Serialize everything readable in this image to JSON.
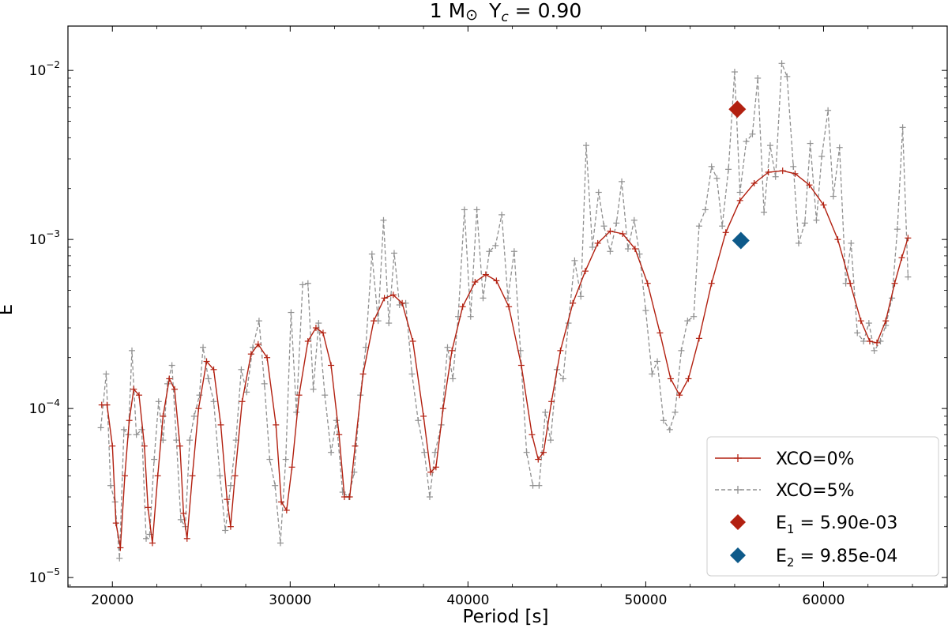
{
  "chart_data": {
    "type": "line",
    "title": "1 M⊙  Yᴄ = 0.90",
    "title_parts": {
      "mass": "1 M",
      "sun": "⊙",
      "y": "Y",
      "c": "c",
      "rest": " = 0.90"
    },
    "xlabel": "Period [s]",
    "ylabel": "E",
    "yscale": "log",
    "xlim": [
      17500,
      67000
    ],
    "ylim": [
      8.8e-06,
      0.0183
    ],
    "x_ticks": [
      20000,
      30000,
      40000,
      50000,
      60000
    ],
    "x_tick_labels": [
      "20000",
      "30000",
      "40000",
      "50000",
      "60000"
    ],
    "y_ticks": [
      1e-05,
      0.0001,
      0.001,
      0.01
    ],
    "y_tick_labels": [
      {
        "base": "10",
        "exp": "−5"
      },
      {
        "base": "10",
        "exp": "−4"
      },
      {
        "base": "10",
        "exp": "−3"
      },
      {
        "base": "10",
        "exp": "−2"
      }
    ],
    "series": [
      {
        "name": "XCO=0%",
        "color": "#b22010",
        "style": "solid",
        "marker": "+",
        "points": [
          [
            19400,
            0.000105
          ],
          [
            19700,
            0.000105
          ],
          [
            20000,
            6e-05
          ],
          [
            20200,
            2.1e-05
          ],
          [
            20450,
            1.5e-05
          ],
          [
            20700,
            4e-05
          ],
          [
            20950,
            8.5e-05
          ],
          [
            21200,
            0.00013
          ],
          [
            21500,
            0.00012
          ],
          [
            21800,
            6e-05
          ],
          [
            22000,
            2.6e-05
          ],
          [
            22250,
            1.6e-05
          ],
          [
            22550,
            4e-05
          ],
          [
            22850,
            9e-05
          ],
          [
            23200,
            0.00015
          ],
          [
            23500,
            0.00013
          ],
          [
            23800,
            6e-05
          ],
          [
            24000,
            2.4e-05
          ],
          [
            24200,
            1.7e-05
          ],
          [
            24500,
            4e-05
          ],
          [
            24850,
            0.0001
          ],
          [
            25300,
            0.00019
          ],
          [
            25700,
            0.00017
          ],
          [
            26100,
            8e-05
          ],
          [
            26450,
            2.9e-05
          ],
          [
            26650,
            2e-05
          ],
          [
            26900,
            4e-05
          ],
          [
            27300,
            0.00011
          ],
          [
            27800,
            0.00021
          ],
          [
            28200,
            0.00024
          ],
          [
            28700,
            0.0002
          ],
          [
            29200,
            8e-05
          ],
          [
            29500,
            2.8e-05
          ],
          [
            29800,
            2.5e-05
          ],
          [
            30100,
            4.5e-05
          ],
          [
            30500,
            0.00012
          ],
          [
            31000,
            0.00025
          ],
          [
            31450,
            0.0003
          ],
          [
            31850,
            0.00028
          ],
          [
            32300,
            0.00018
          ],
          [
            32750,
            7e-05
          ],
          [
            33050,
            3e-05
          ],
          [
            33350,
            3e-05
          ],
          [
            33650,
            6e-05
          ],
          [
            34100,
            0.00016
          ],
          [
            34700,
            0.00033
          ],
          [
            35300,
            0.00045
          ],
          [
            35800,
            0.00047
          ],
          [
            36300,
            0.00042
          ],
          [
            36900,
            0.00025
          ],
          [
            37500,
            9e-05
          ],
          [
            37900,
            4.2e-05
          ],
          [
            38200,
            4.5e-05
          ],
          [
            38600,
            0.0001
          ],
          [
            39100,
            0.00022
          ],
          [
            39700,
            0.0004
          ],
          [
            40400,
            0.00056
          ],
          [
            41000,
            0.00062
          ],
          [
            41600,
            0.00057
          ],
          [
            42300,
            0.0004
          ],
          [
            43000,
            0.00018
          ],
          [
            43600,
            7e-05
          ],
          [
            43950,
            5e-05
          ],
          [
            44250,
            5.5e-05
          ],
          [
            44700,
            0.00011
          ],
          [
            45200,
            0.00022
          ],
          [
            45900,
            0.00042
          ],
          [
            46600,
            0.00065
          ],
          [
            47300,
            0.00095
          ],
          [
            48000,
            0.00112
          ],
          [
            48700,
            0.00108
          ],
          [
            49400,
            0.00088
          ],
          [
            50100,
            0.00055
          ],
          [
            50800,
            0.00028
          ],
          [
            51400,
            0.00015
          ],
          [
            51900,
            0.00012
          ],
          [
            52400,
            0.00015
          ],
          [
            53000,
            0.00026
          ],
          [
            53700,
            0.00055
          ],
          [
            54500,
            0.0011
          ],
          [
            55300,
            0.0017
          ],
          [
            56100,
            0.00215
          ],
          [
            56900,
            0.0025
          ],
          [
            57700,
            0.00255
          ],
          [
            58400,
            0.00245
          ],
          [
            59200,
            0.0021
          ],
          [
            60000,
            0.0016
          ],
          [
            60800,
            0.001
          ],
          [
            61500,
            0.00055
          ],
          [
            62100,
            0.00033
          ],
          [
            62600,
            0.00025
          ],
          [
            63000,
            0.000245
          ],
          [
            63500,
            0.00033
          ],
          [
            64000,
            0.00055
          ],
          [
            64400,
            0.00078
          ],
          [
            64750,
            0.00102
          ]
        ]
      },
      {
        "name": "XCO=5%",
        "color": "#909090",
        "style": "dashed",
        "marker": "+",
        "points": [
          [
            19350,
            7.7e-05
          ],
          [
            19650,
            0.00016
          ],
          [
            19900,
            3.5e-05
          ],
          [
            20150,
            2.8e-05
          ],
          [
            20400,
            1.3e-05
          ],
          [
            20650,
            7.5e-05
          ],
          [
            20900,
            7e-05
          ],
          [
            21100,
            0.00022
          ],
          [
            21350,
            7e-05
          ],
          [
            21650,
            7.5e-05
          ],
          [
            21900,
            1.7e-05
          ],
          [
            22100,
            1.8e-05
          ],
          [
            22350,
            5e-05
          ],
          [
            22600,
            0.00011
          ],
          [
            22850,
            6.5e-05
          ],
          [
            23100,
            0.00014
          ],
          [
            23350,
            0.00018
          ],
          [
            23600,
            6.5e-05
          ],
          [
            23850,
            2.2e-05
          ],
          [
            24100,
            2e-05
          ],
          [
            24350,
            6.5e-05
          ],
          [
            24600,
            9e-05
          ],
          [
            24900,
            0.00012
          ],
          [
            25100,
            0.00023
          ],
          [
            25400,
            0.00015
          ],
          [
            25700,
            0.00011
          ],
          [
            26050,
            4e-05
          ],
          [
            26350,
            1.9e-05
          ],
          [
            26650,
            3.5e-05
          ],
          [
            26950,
            6.5e-05
          ],
          [
            27250,
            0.00017
          ],
          [
            27550,
            0.000125
          ],
          [
            27900,
            0.00023
          ],
          [
            28250,
            0.00033
          ],
          [
            28550,
            0.00014
          ],
          [
            28850,
            5e-05
          ],
          [
            29150,
            3.5e-05
          ],
          [
            29450,
            1.6e-05
          ],
          [
            29750,
            5e-05
          ],
          [
            30050,
            0.00037
          ],
          [
            30350,
            9.5e-05
          ],
          [
            30700,
            0.00054
          ],
          [
            31000,
            0.00055
          ],
          [
            31300,
            0.00013
          ],
          [
            31600,
            0.00032
          ],
          [
            31950,
            0.00012
          ],
          [
            32300,
            5.5e-05
          ],
          [
            32600,
            8.5e-05
          ],
          [
            32950,
            3.2e-05
          ],
          [
            33300,
            3e-05
          ],
          [
            33600,
            4.2e-05
          ],
          [
            33950,
            0.00012
          ],
          [
            34250,
            0.00023
          ],
          [
            34600,
            0.00082
          ],
          [
            34950,
            0.00033
          ],
          [
            35250,
            0.0013
          ],
          [
            35550,
            0.00032
          ],
          [
            35850,
            0.00083
          ],
          [
            36150,
            0.00041
          ],
          [
            36500,
            0.00042
          ],
          [
            36850,
            0.00016
          ],
          [
            37200,
            8.5e-05
          ],
          [
            37550,
            5.5e-05
          ],
          [
            37850,
            3e-05
          ],
          [
            38150,
            5.5e-05
          ],
          [
            38500,
            8e-05
          ],
          [
            38850,
            0.00023
          ],
          [
            39150,
            0.00015
          ],
          [
            39450,
            0.00035
          ],
          [
            39800,
            0.0015
          ],
          [
            40150,
            0.00035
          ],
          [
            40500,
            0.0015
          ],
          [
            40850,
            0.00045
          ],
          [
            41200,
            0.00085
          ],
          [
            41550,
            0.00092
          ],
          [
            41900,
            0.0014
          ],
          [
            42250,
            0.00045
          ],
          [
            42600,
            0.00085
          ],
          [
            42950,
            0.00022
          ],
          [
            43300,
            5.5e-05
          ],
          [
            43650,
            3.5e-05
          ],
          [
            44000,
            3.5e-05
          ],
          [
            44350,
            9.5e-05
          ],
          [
            44650,
            6.5e-05
          ],
          [
            45000,
            0.00017
          ],
          [
            45350,
            0.00015
          ],
          [
            45650,
            0.00032
          ],
          [
            46000,
            0.00075
          ],
          [
            46350,
            0.00046
          ],
          [
            46650,
            0.0036
          ],
          [
            47000,
            0.0009
          ],
          [
            47350,
            0.0019
          ],
          [
            47650,
            0.0012
          ],
          [
            48000,
            0.00085
          ],
          [
            48350,
            0.00125
          ],
          [
            48650,
            0.0022
          ],
          [
            49000,
            0.00088
          ],
          [
            49350,
            0.0013
          ],
          [
            49650,
            0.00082
          ],
          [
            50000,
            0.00038
          ],
          [
            50350,
            0.00016
          ],
          [
            50650,
            0.00019
          ],
          [
            51000,
            8.5e-05
          ],
          [
            51350,
            7.5e-05
          ],
          [
            51650,
            9.5e-05
          ],
          [
            52000,
            0.00022
          ],
          [
            52350,
            0.00033
          ],
          [
            52700,
            0.00035
          ],
          [
            53000,
            0.0012
          ],
          [
            53350,
            0.0015
          ],
          [
            53700,
            0.0027
          ],
          [
            54000,
            0.0023
          ],
          [
            54300,
            0.0012
          ],
          [
            54650,
            0.0026
          ],
          [
            55000,
            0.0098
          ],
          [
            55300,
            0.0019
          ],
          [
            55650,
            0.0038
          ],
          [
            56000,
            0.0042
          ],
          [
            56300,
            0.009
          ],
          [
            56650,
            0.00145
          ],
          [
            57000,
            0.0036
          ],
          [
            57300,
            0.00235
          ],
          [
            57650,
            0.011
          ],
          [
            57950,
            0.0092
          ],
          [
            58300,
            0.0027
          ],
          [
            58600,
            0.00095
          ],
          [
            58950,
            0.00125
          ],
          [
            59250,
            0.0037
          ],
          [
            59600,
            0.0013
          ],
          [
            59900,
            0.0031
          ],
          [
            60250,
            0.0058
          ],
          [
            60550,
            0.0018
          ],
          [
            60900,
            0.0035
          ],
          [
            61250,
            0.00055
          ],
          [
            61550,
            0.00095
          ],
          [
            61900,
            0.00028
          ],
          [
            62250,
            0.00025
          ],
          [
            62550,
            0.00032
          ],
          [
            62850,
            0.00022
          ],
          [
            63200,
            0.00025
          ],
          [
            63500,
            0.00031
          ],
          [
            63850,
            0.00045
          ],
          [
            64150,
            0.00115
          ],
          [
            64450,
            0.0046
          ],
          [
            64750,
            0.0006
          ]
        ]
      },
      {
        "name": "E₁ = 5.90e-03",
        "label_parts": {
          "base": "E",
          "sub": "1",
          "rest": " = 5.90e-03"
        },
        "color": "#b22010",
        "style": "marker",
        "marker": "diamond",
        "points": [
          [
            55150,
            0.0059
          ]
        ]
      },
      {
        "name": "E₂ = 9.85e-04",
        "label_parts": {
          "base": "E",
          "sub": "2",
          "rest": " = 9.85e-04"
        },
        "color": "#0e5a8a",
        "style": "marker",
        "marker": "diamond",
        "points": [
          [
            55350,
            0.000985
          ]
        ]
      }
    ],
    "legend_position": "lower-right",
    "grid": false
  }
}
